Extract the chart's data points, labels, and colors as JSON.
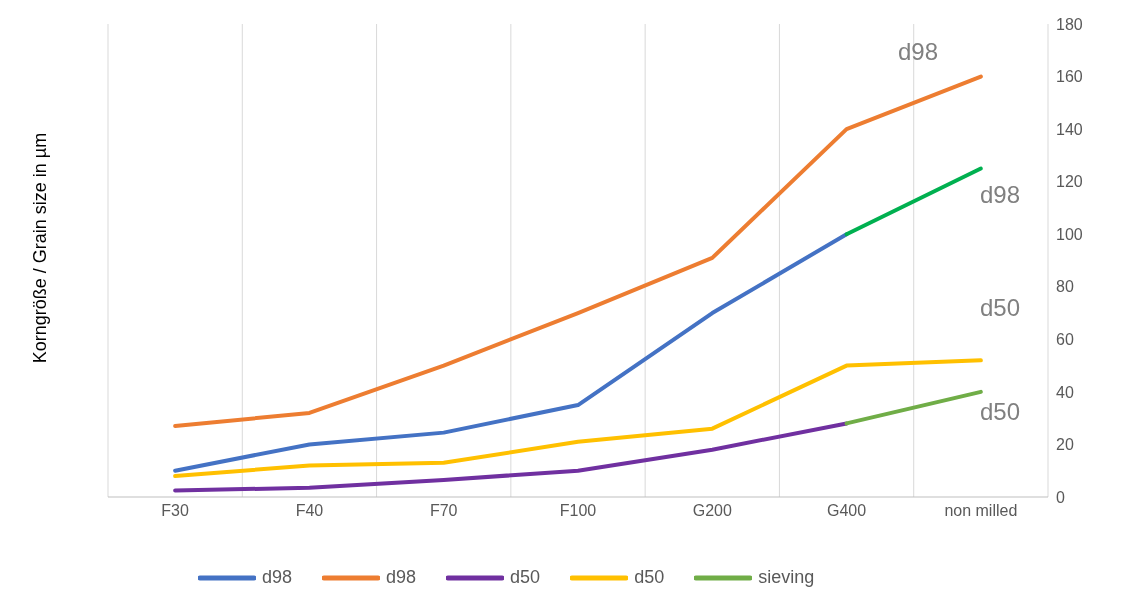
{
  "chart_data": {
    "type": "line",
    "ylabel": "Korngröße / Grain size in µm",
    "categories": [
      "F30",
      "F40",
      "F70",
      "F100",
      "G200",
      "G400",
      "non milled"
    ],
    "series": [
      {
        "name": "d98",
        "color": "#4472c4",
        "values": [
          10,
          20,
          24.5,
          35,
          70,
          100,
          null
        ]
      },
      {
        "name": "d98",
        "color": "#ed7d31",
        "values": [
          27,
          32,
          50,
          70,
          91,
          140,
          160
        ]
      },
      {
        "name": "d50",
        "color": "#7030a0",
        "values": [
          2.5,
          3.5,
          6.5,
          10,
          18,
          28,
          null
        ]
      },
      {
        "name": "d50",
        "color": "#ffc000",
        "values": [
          8,
          12,
          13,
          21,
          26,
          50,
          52
        ]
      },
      {
        "color": "#00b050",
        "values": [
          null,
          null,
          null,
          null,
          null,
          100,
          125
        ]
      },
      {
        "name": "sieving",
        "color": "#70ad47",
        "values": [
          null,
          null,
          null,
          null,
          null,
          28,
          40
        ]
      }
    ],
    "ylim": [
      0,
      180
    ],
    "yticks": [
      0,
      20,
      40,
      60,
      80,
      100,
      120,
      140,
      160,
      180
    ],
    "grid": "x",
    "legend": "bottom",
    "marker": "none",
    "line_style": "solid",
    "annotations": [
      "d98",
      "d98",
      "d50",
      "d50"
    ]
  }
}
